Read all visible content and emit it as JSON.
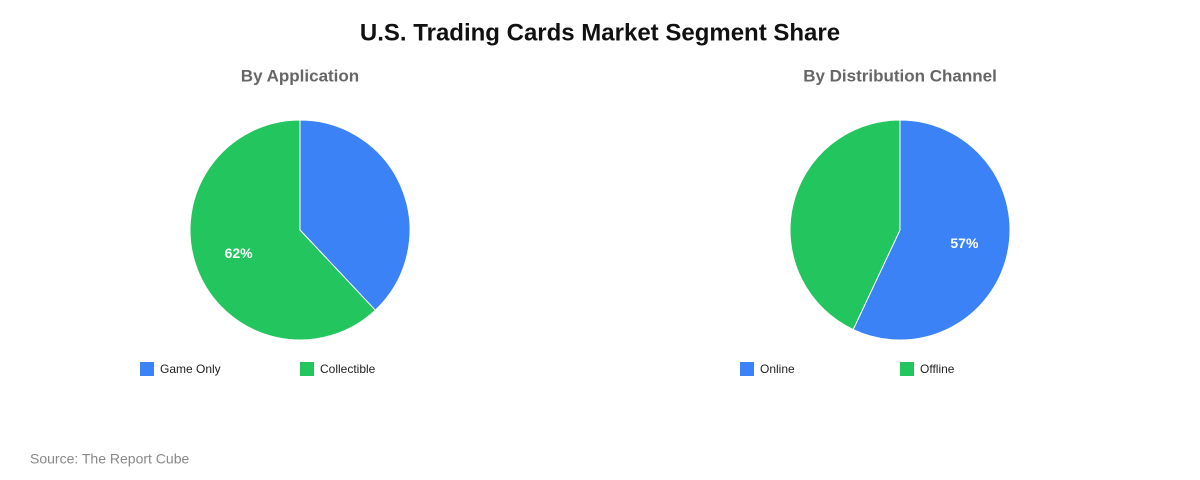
{
  "title": "U.S. Trading Cards Market Segment Share",
  "source": "Source: The Report Cube",
  "chart_data": [
    {
      "type": "pie",
      "title": "By Application",
      "categories": [
        "Game Only",
        "Collectible"
      ],
      "values": [
        38,
        62
      ],
      "value_labels": [
        null,
        "62%"
      ],
      "colors": [
        "#3b82f6",
        "#22c55e"
      ]
    },
    {
      "type": "pie",
      "title": "By Distribution Channel",
      "categories": [
        "Online",
        "Offline"
      ],
      "values": [
        57,
        43
      ],
      "value_labels": [
        "57%",
        null
      ],
      "colors": [
        "#3b82f6",
        "#22c55e"
      ]
    }
  ]
}
